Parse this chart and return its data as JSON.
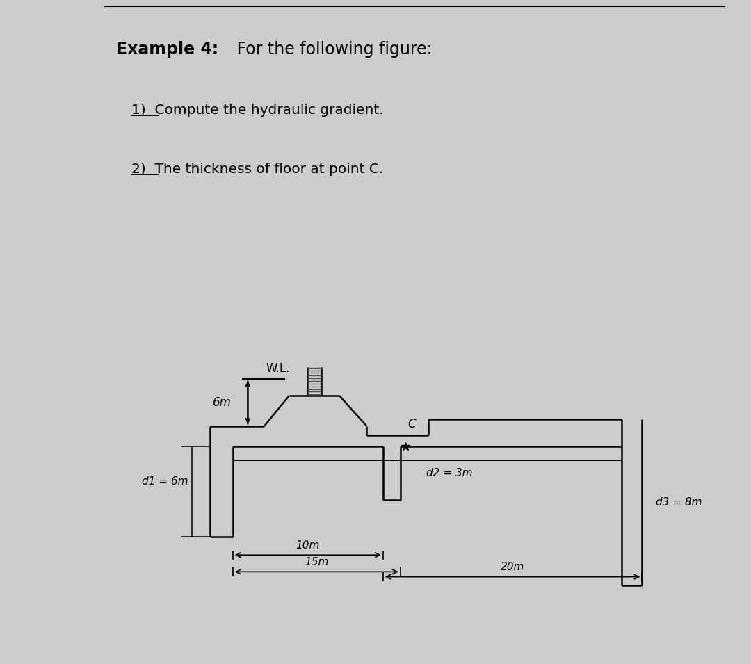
{
  "bg_top": "#ffffff",
  "bg_bottom": "#cccccc",
  "title_bold": "Example 4:",
  "title_rest": " For the following figure:",
  "sub1": "1)  Compute the hydraulic gradient.",
  "sub2": "2)  The thickness of floor at point C.",
  "lbl_wl": "W.L.",
  "lbl_6m": "6m",
  "lbl_d1": "d1 = 6m",
  "lbl_d2": "d2 = 3m",
  "lbl_d3": "d3 = 8m",
  "lbl_10m": "10m",
  "lbl_15m": "15m",
  "lbl_20m": "20m",
  "lbl_C": "C",
  "line_color": "#000000"
}
